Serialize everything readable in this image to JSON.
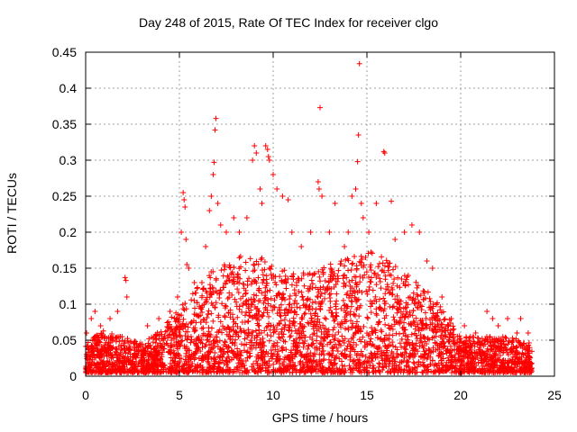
{
  "chart_data": {
    "type": "scatter",
    "title": "Day 248 of 2015, Rate Of TEC Index for receiver clgo",
    "xlabel": "GPS time / hours",
    "ylabel": "ROTI / TECUs",
    "xlim": [
      0,
      25
    ],
    "ylim": [
      0,
      0.45
    ],
    "x_ticks": [
      0,
      5,
      10,
      15,
      20,
      25
    ],
    "x_tick_labels": [
      "0",
      "5",
      "10",
      "15",
      "20",
      "25"
    ],
    "y_ticks": [
      0,
      0.05,
      0.1,
      0.15,
      0.2,
      0.25,
      0.3,
      0.35,
      0.4,
      0.45
    ],
    "y_tick_labels": [
      "0",
      "0.05",
      "0.1",
      "0.15",
      "0.2",
      "0.25",
      "0.3",
      "0.35",
      "0.4",
      "0.45"
    ],
    "grid": true,
    "marker": "+",
    "color": "#ff0000",
    "envelope": [
      [
        0.0,
        0.04
      ],
      [
        1.0,
        0.06
      ],
      [
        2.0,
        0.05
      ],
      [
        3.0,
        0.04
      ],
      [
        4.0,
        0.06
      ],
      [
        5.0,
        0.09
      ],
      [
        6.0,
        0.12
      ],
      [
        7.0,
        0.15
      ],
      [
        8.0,
        0.16
      ],
      [
        9.0,
        0.17
      ],
      [
        10.0,
        0.15
      ],
      [
        11.0,
        0.14
      ],
      [
        12.0,
        0.14
      ],
      [
        13.0,
        0.15
      ],
      [
        14.0,
        0.16
      ],
      [
        15.0,
        0.17
      ],
      [
        16.0,
        0.16
      ],
      [
        17.0,
        0.14
      ],
      [
        18.0,
        0.12
      ],
      [
        19.0,
        0.09
      ],
      [
        20.0,
        0.05
      ],
      [
        21.0,
        0.05
      ],
      [
        22.0,
        0.05
      ],
      [
        23.0,
        0.05
      ],
      [
        23.8,
        0.04
      ]
    ],
    "points": [
      [
        0.05,
        0.06
      ],
      [
        0.3,
        0.08
      ],
      [
        0.5,
        0.09
      ],
      [
        0.8,
        0.07
      ],
      [
        1.3,
        0.08
      ],
      [
        1.7,
        0.09
      ],
      [
        2.1,
        0.137
      ],
      [
        2.15,
        0.133
      ],
      [
        2.2,
        0.11
      ],
      [
        3.3,
        0.07
      ],
      [
        3.9,
        0.08
      ],
      [
        4.5,
        0.09
      ],
      [
        4.9,
        0.11
      ],
      [
        5.1,
        0.2
      ],
      [
        5.2,
        0.255
      ],
      [
        5.25,
        0.245
      ],
      [
        5.3,
        0.235
      ],
      [
        5.35,
        0.19
      ],
      [
        5.4,
        0.155
      ],
      [
        5.5,
        0.15
      ],
      [
        5.8,
        0.13
      ],
      [
        6.2,
        0.13
      ],
      [
        6.4,
        0.18
      ],
      [
        6.6,
        0.23
      ],
      [
        6.7,
        0.25
      ],
      [
        6.8,
        0.28
      ],
      [
        6.85,
        0.297
      ],
      [
        6.9,
        0.342
      ],
      [
        6.95,
        0.358
      ],
      [
        7.05,
        0.24
      ],
      [
        7.2,
        0.21
      ],
      [
        7.5,
        0.2
      ],
      [
        7.9,
        0.22
      ],
      [
        8.2,
        0.2
      ],
      [
        8.6,
        0.22
      ],
      [
        8.9,
        0.3
      ],
      [
        9.0,
        0.32
      ],
      [
        9.1,
        0.31
      ],
      [
        9.3,
        0.26
      ],
      [
        9.4,
        0.24
      ],
      [
        9.6,
        0.32
      ],
      [
        9.7,
        0.315
      ],
      [
        9.75,
        0.305
      ],
      [
        9.8,
        0.3
      ],
      [
        10.0,
        0.28
      ],
      [
        10.2,
        0.26
      ],
      [
        10.5,
        0.25
      ],
      [
        10.8,
        0.245
      ],
      [
        11.0,
        0.2
      ],
      [
        11.5,
        0.18
      ],
      [
        12.0,
        0.2
      ],
      [
        12.4,
        0.27
      ],
      [
        12.45,
        0.26
      ],
      [
        12.5,
        0.373
      ],
      [
        12.6,
        0.25
      ],
      [
        13.0,
        0.2
      ],
      [
        13.3,
        0.24
      ],
      [
        13.8,
        0.18
      ],
      [
        14.0,
        0.2
      ],
      [
        14.2,
        0.25
      ],
      [
        14.4,
        0.26
      ],
      [
        14.5,
        0.298
      ],
      [
        14.55,
        0.335
      ],
      [
        14.6,
        0.434
      ],
      [
        14.7,
        0.24
      ],
      [
        14.8,
        0.22
      ],
      [
        15.1,
        0.2
      ],
      [
        15.5,
        0.24
      ],
      [
        15.9,
        0.312
      ],
      [
        15.95,
        0.31
      ],
      [
        16.3,
        0.243
      ],
      [
        16.5,
        0.19
      ],
      [
        17.0,
        0.2
      ],
      [
        17.4,
        0.21
      ],
      [
        17.8,
        0.2
      ],
      [
        18.2,
        0.16
      ],
      [
        18.5,
        0.15
      ],
      [
        19.0,
        0.11
      ],
      [
        19.5,
        0.08
      ],
      [
        20.2,
        0.07
      ],
      [
        20.8,
        0.06
      ],
      [
        21.4,
        0.09
      ],
      [
        21.7,
        0.08
      ],
      [
        22.0,
        0.07
      ],
      [
        22.5,
        0.08
      ],
      [
        23.0,
        0.06
      ],
      [
        23.2,
        0.08
      ],
      [
        23.6,
        0.06
      ]
    ]
  }
}
